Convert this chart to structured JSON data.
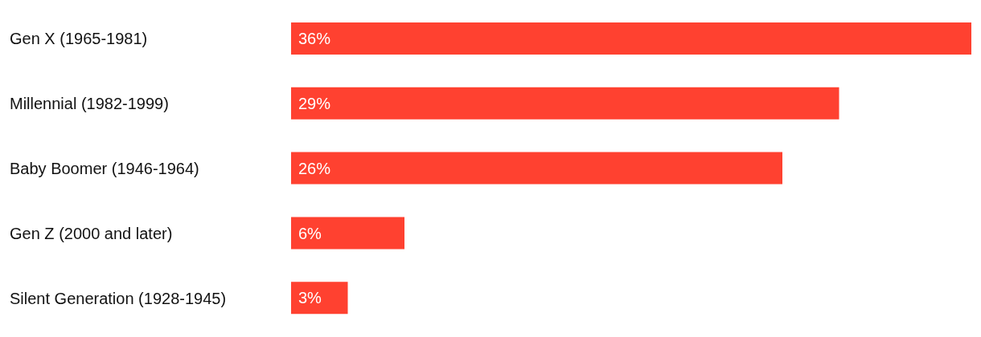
{
  "chart_data": {
    "type": "bar",
    "orientation": "horizontal",
    "categories": [
      "Gen X (1965-1981)",
      "Millennial (1982-1999)",
      "Baby Boomer (1946-1964)",
      "Gen Z (2000 and later)",
      "Silent Generation (1928-1945)"
    ],
    "values": [
      36,
      29,
      26,
      6,
      3
    ],
    "color": "#ff4130",
    "value_labels": [
      "36%",
      "29%",
      "26%",
      "6%",
      "3%"
    ],
    "grid": false,
    "legend": false
  }
}
